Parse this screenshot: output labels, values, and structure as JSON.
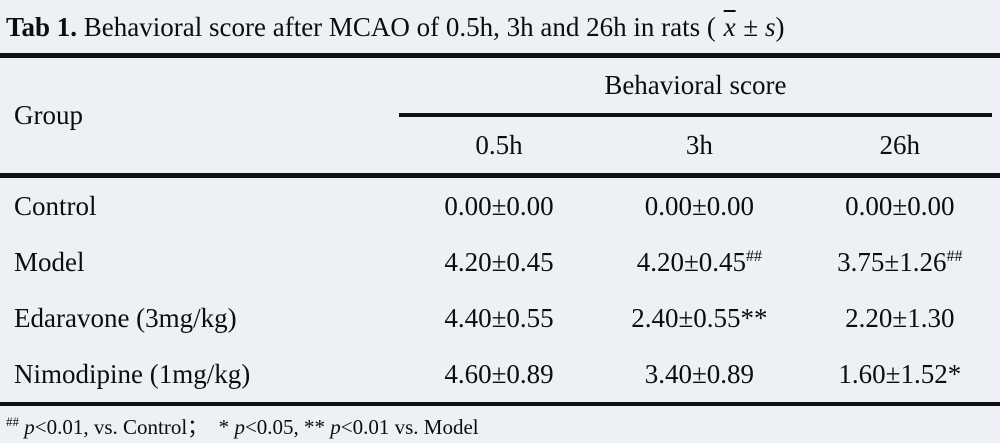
{
  "title": {
    "label_bold": "Tab 1.",
    "text": " Behavioral score after MCAO of 0.5h, 3h and 26h in rats ( ",
    "xbar": "x",
    "pm": " ± ",
    "s_italic": "s",
    "close": ")"
  },
  "table": {
    "group_header": "Group",
    "span_header": "Behavioral score",
    "sub_headers": [
      "0.5h",
      "3h",
      "26h"
    ],
    "rows": [
      {
        "group": "Control",
        "cells": [
          {
            "v": "0.00±0.00",
            "sup": ""
          },
          {
            "v": "0.00±0.00",
            "sup": ""
          },
          {
            "v": "0.00±0.00",
            "sup": ""
          }
        ]
      },
      {
        "group": "Model",
        "cells": [
          {
            "v": "4.20±0.45",
            "sup": ""
          },
          {
            "v": "4.20±0.45",
            "sup": "##"
          },
          {
            "v": "3.75±1.26",
            "sup": "##"
          }
        ]
      },
      {
        "group": "Edaravone (3mg/kg)",
        "cells": [
          {
            "v": "4.40±0.55",
            "sup": ""
          },
          {
            "v": "2.40±0.55**",
            "sup": ""
          },
          {
            "v": "2.20±1.30",
            "sup": ""
          }
        ]
      },
      {
        "group": "Nimodipine (1mg/kg)",
        "cells": [
          {
            "v": "4.60±0.89",
            "sup": ""
          },
          {
            "v": "3.40±0.89",
            "sup": ""
          },
          {
            "v": "1.60±1.52*",
            "sup": ""
          }
        ]
      }
    ]
  },
  "footnote": {
    "sup": "##",
    "sp": " ",
    "p1": "p",
    "t1": "<0.01, vs. Control；  * ",
    "p2": "p",
    "t2": "<0.05, ** ",
    "p3": "p",
    "t3": "<0.01 vs. Model"
  },
  "colors": {
    "background": "#edf0f4",
    "text": "#0d0d0d",
    "rule": "#111111"
  }
}
